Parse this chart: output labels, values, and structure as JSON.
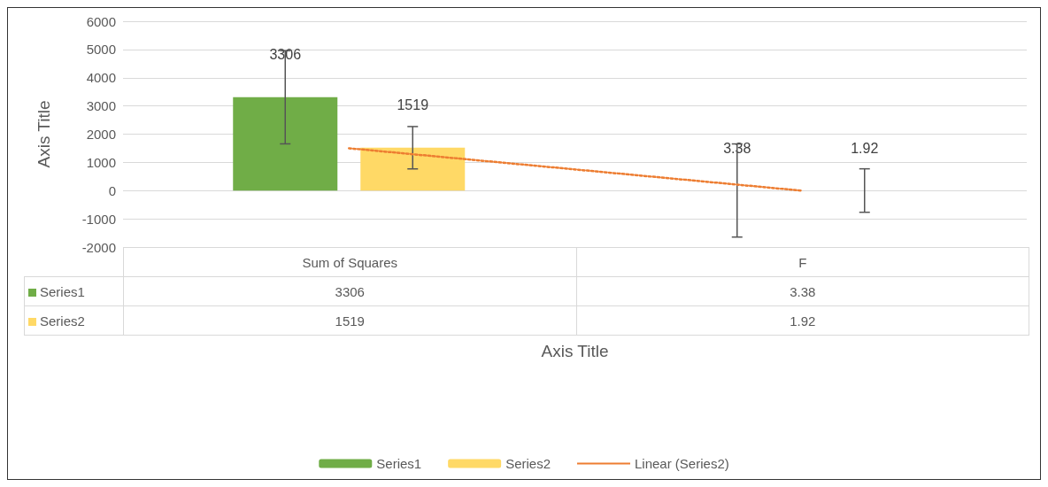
{
  "chart_data": {
    "type": "bar",
    "categories": [
      "Sum of Squares",
      "F"
    ],
    "xlabel": "Axis Title",
    "ylabel": "Axis Title",
    "ylim": [
      -2000,
      6000
    ],
    "yticks": [
      -2000,
      -1000,
      0,
      1000,
      2000,
      3000,
      4000,
      5000,
      6000
    ],
    "grid": "y",
    "legend": "bottom",
    "series": [
      {
        "name": "Series1",
        "color": "#70ad47",
        "values": [
          3306,
          3.38
        ],
        "value_labels": [
          "3306",
          "3.38"
        ],
        "errors": [
          1650,
          1650
        ]
      },
      {
        "name": "Series2",
        "color": "#ffd966",
        "values": [
          1519,
          1.92
        ],
        "value_labels": [
          "1519",
          "1.92"
        ],
        "errors": [
          750,
          770
        ]
      },
      {
        "name": "Linear (Series2)",
        "type": "line",
        "color": "#ed7d31",
        "line_style": "dotted",
        "marker": "none",
        "x": [
          "Sum of Squares",
          "F"
        ],
        "values": [
          1500,
          0
        ]
      }
    ]
  }
}
